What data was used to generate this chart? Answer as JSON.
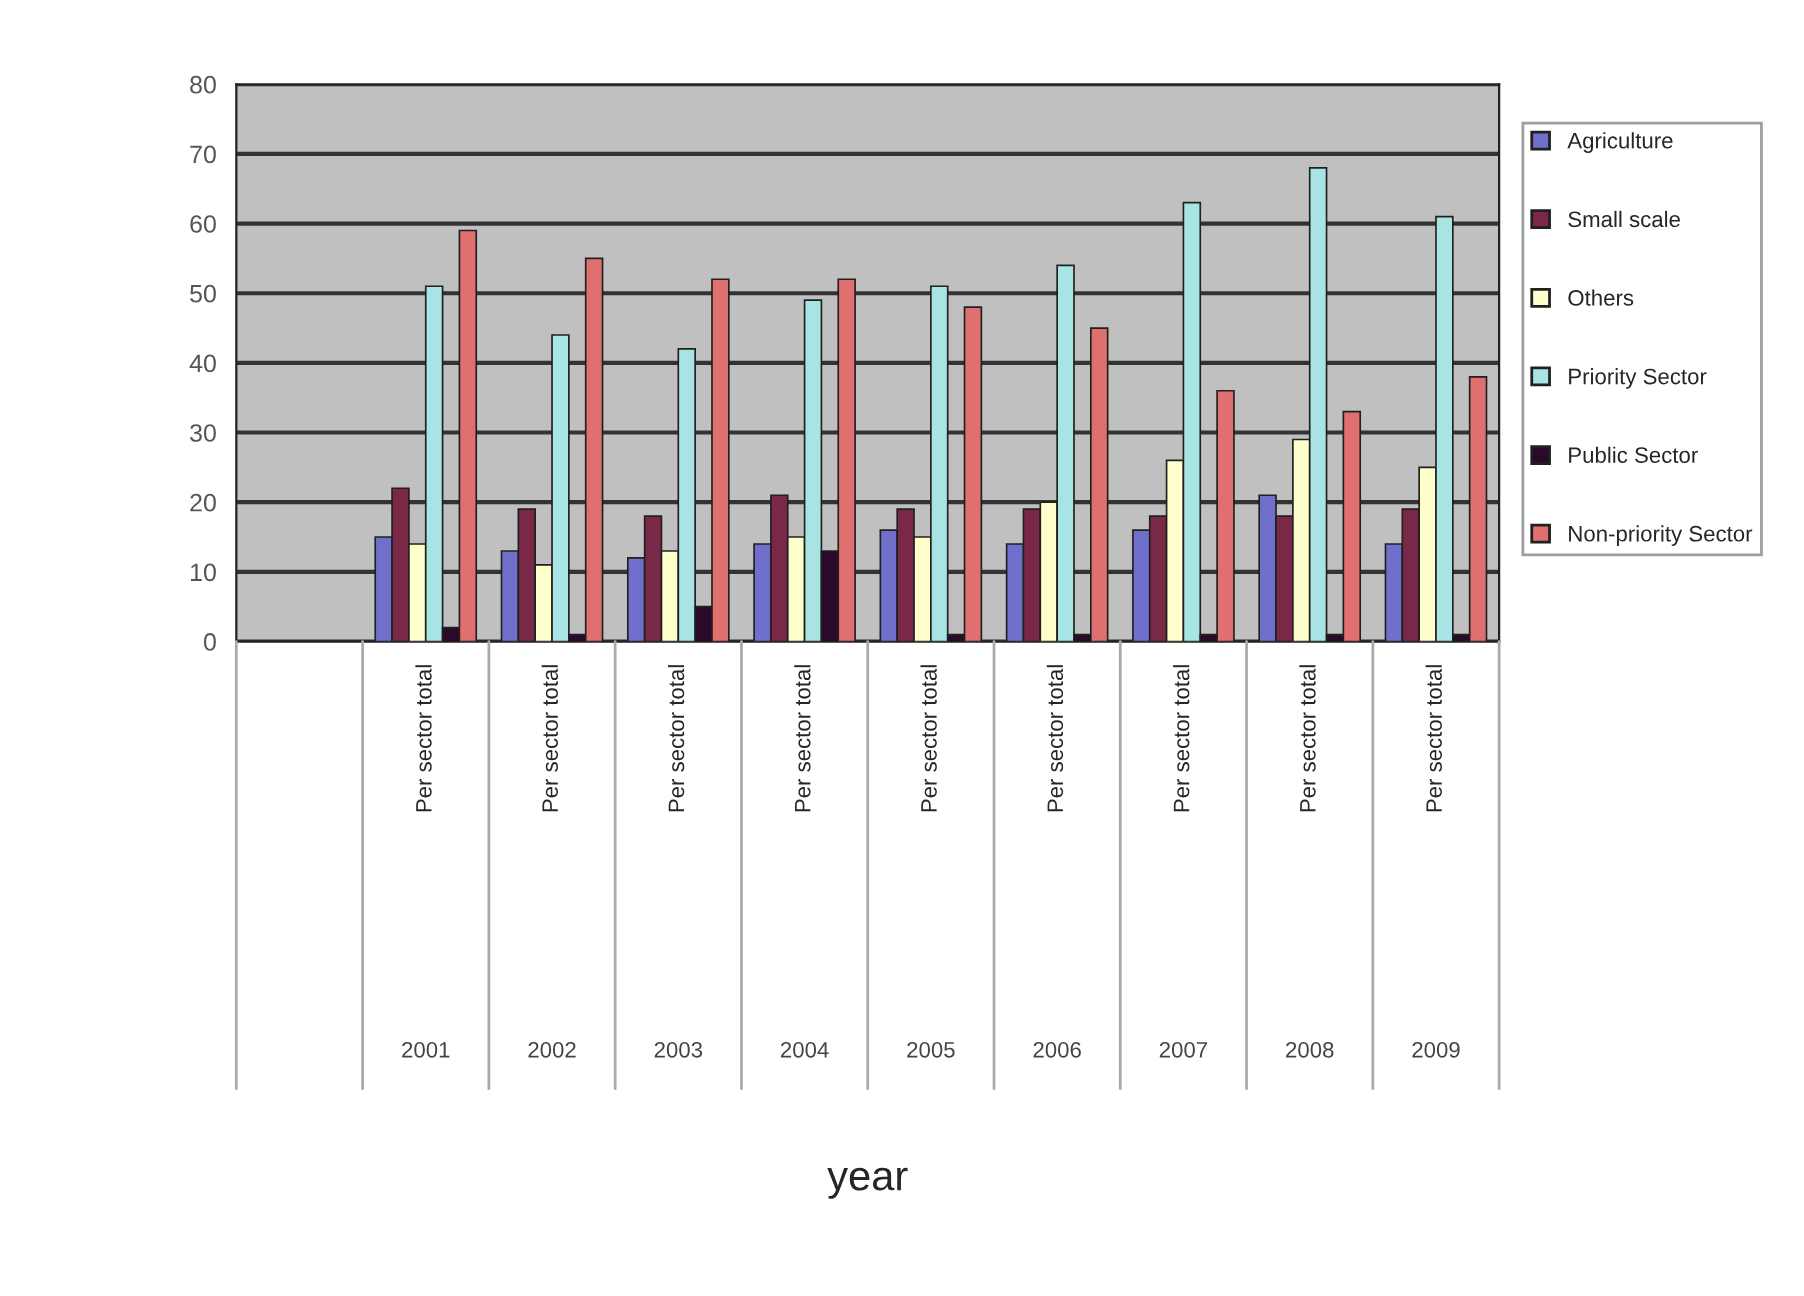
{
  "chart_data": {
    "type": "bar",
    "annotations": [
      "year"
    ],
    "categories": [
      null,
      "2001\nPer sector total",
      "2002\nPer sector total",
      "2003\nPer sector total",
      "2004\nPer sector total",
      "2005\nPer sector total",
      "2006\nPer sector total",
      "2007\nPer sector total",
      "2008\nPer sector total",
      "2009\nPer sector total"
    ],
    "series": [
      {
        "name": "Agriculture",
        "color": "#7070cc",
        "values": [
          null,
          15,
          13,
          12,
          14,
          16,
          14,
          16,
          21,
          14
        ]
      },
      {
        "name": "Small scale",
        "color": "#7a2848",
        "values": [
          null,
          22,
          19,
          18,
          21,
          19,
          19,
          18,
          18,
          19
        ]
      },
      {
        "name": "Others",
        "color": "#ffffcc",
        "values": [
          null,
          14,
          11,
          13,
          15,
          15,
          20,
          26,
          29,
          25
        ]
      },
      {
        "name": "Priority Sector",
        "color": "#a8e4e4",
        "values": [
          null,
          51,
          44,
          42,
          49,
          51,
          54,
          63,
          68,
          61
        ]
      },
      {
        "name": "Public Sector",
        "color": "#2a0a2a",
        "values": [
          null,
          2,
          1,
          5,
          13,
          1,
          1,
          1,
          1,
          1
        ]
      },
      {
        "name": "Non-priority Sector",
        "color": "#e07070",
        "values": [
          null,
          59,
          55,
          52,
          52,
          48,
          45,
          36,
          33,
          38
        ]
      }
    ],
    "ylim": [
      0,
      80
    ],
    "yticks": [
      0,
      10,
      20,
      30,
      40,
      50,
      60,
      70,
      80
    ],
    "grid": "y",
    "legend": "top right"
  }
}
